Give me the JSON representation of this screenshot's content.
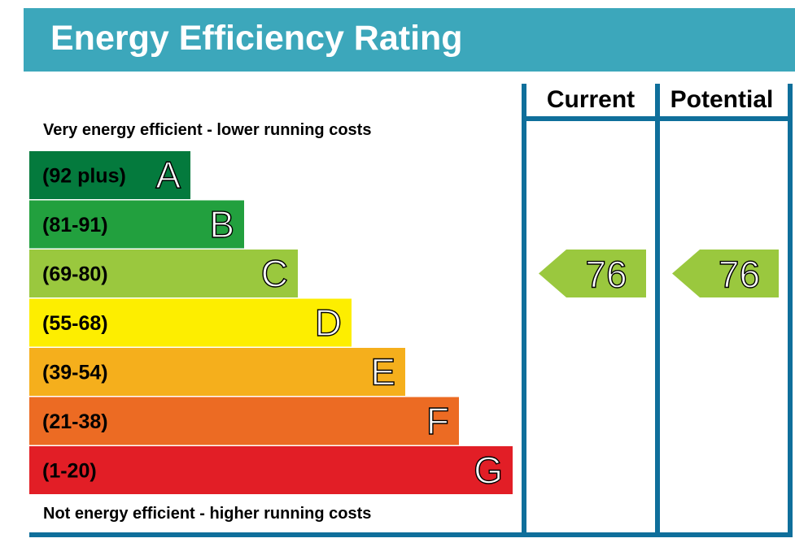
{
  "title": "Energy Efficiency Rating",
  "header": {
    "current_label": "Current",
    "potential_label": "Potential"
  },
  "captions": {
    "top": "Very energy efficient - lower running costs",
    "bottom": "Not energy efficient - higher running costs"
  },
  "colors": {
    "header_bg": "#3ca7bb",
    "frame": "#0f6f9b",
    "A": "#047a3d",
    "B": "#22a03e",
    "C": "#9ac83e",
    "D": "#fdee00",
    "E": "#f5af1c",
    "F": "#ec6b23",
    "G": "#e21e26"
  },
  "chart_data": {
    "type": "bar",
    "categories": [
      "A",
      "B",
      "C",
      "D",
      "E",
      "F",
      "G"
    ],
    "ranges": [
      "(92 plus)",
      "(81-91)",
      "(69-80)",
      "(55-68)",
      "(39-54)",
      "(21-38)",
      "(1-20)"
    ],
    "current": {
      "value": 76,
      "band": "C"
    },
    "potential": {
      "value": 76,
      "band": "C"
    }
  }
}
